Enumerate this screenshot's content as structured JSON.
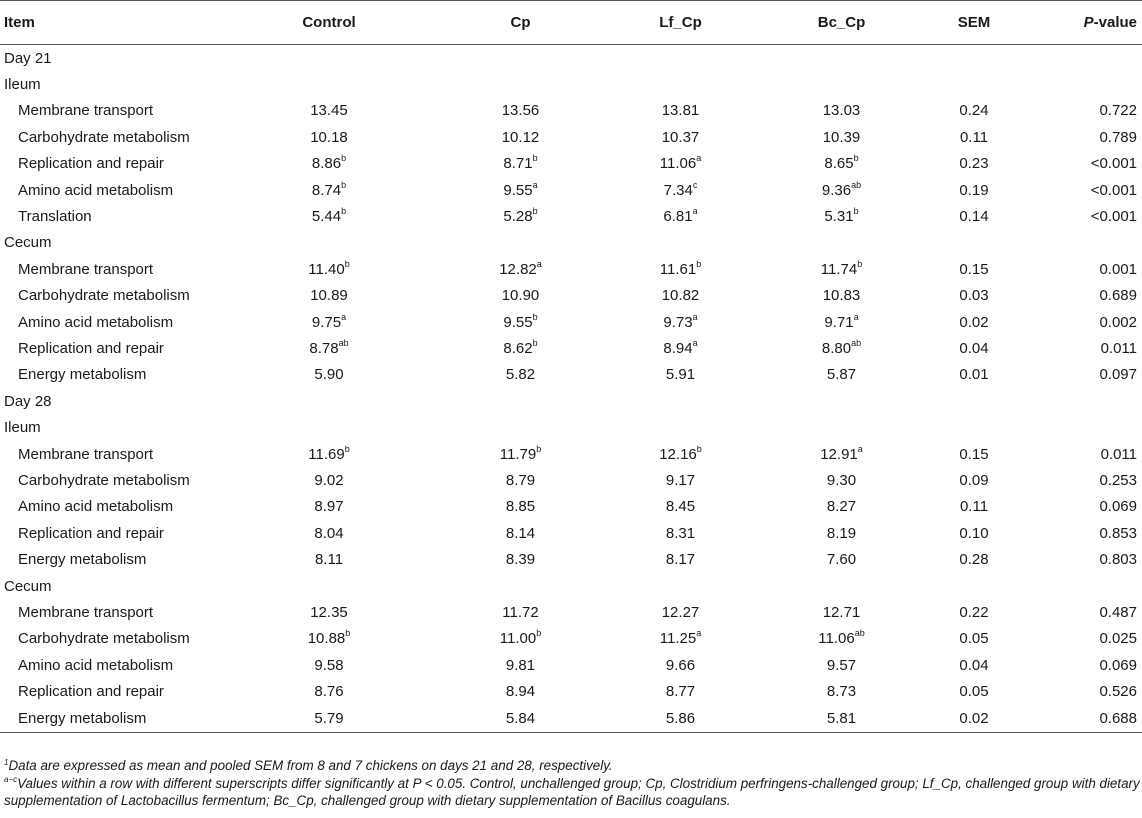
{
  "headers": [
    "Item",
    "Control",
    "Cp",
    "Lf_Cp",
    "Bc_Cp",
    "SEM",
    "P-value"
  ],
  "header_p_italic": "P",
  "header_p_rest": "-value",
  "rows": [
    {
      "kind": "section",
      "label": "Day 21"
    },
    {
      "kind": "section",
      "label": "Ileum"
    },
    {
      "kind": "data",
      "label": "Membrane transport",
      "cells": [
        [
          "13.45",
          ""
        ],
        [
          "13.56",
          ""
        ],
        [
          "13.81",
          ""
        ],
        [
          "13.03",
          ""
        ]
      ],
      "sem": "0.24",
      "p": "0.722"
    },
    {
      "kind": "data",
      "label": "Carbohydrate metabolism",
      "cells": [
        [
          "10.18",
          ""
        ],
        [
          "10.12",
          ""
        ],
        [
          "10.37",
          ""
        ],
        [
          "10.39",
          ""
        ]
      ],
      "sem": "0.11",
      "p": "0.789"
    },
    {
      "kind": "data",
      "label": "Replication and repair",
      "cells": [
        [
          "8.86",
          "b"
        ],
        [
          "8.71",
          "b"
        ],
        [
          "11.06",
          "a"
        ],
        [
          "8.65",
          "b"
        ]
      ],
      "sem": "0.23",
      "p": "<0.001"
    },
    {
      "kind": "data",
      "label": "Amino acid metabolism",
      "cells": [
        [
          "8.74",
          "b"
        ],
        [
          "9.55",
          "a"
        ],
        [
          "7.34",
          "c"
        ],
        [
          "9.36",
          "ab"
        ]
      ],
      "sem": "0.19",
      "p": "<0.001"
    },
    {
      "kind": "data",
      "label": "Translation",
      "cells": [
        [
          "5.44",
          "b"
        ],
        [
          "5.28",
          "b"
        ],
        [
          "6.81",
          "a"
        ],
        [
          "5.31",
          "b"
        ]
      ],
      "sem": "0.14",
      "p": "<0.001"
    },
    {
      "kind": "section",
      "label": "Cecum"
    },
    {
      "kind": "data",
      "label": "Membrane transport",
      "cells": [
        [
          "11.40",
          "b"
        ],
        [
          "12.82",
          "a"
        ],
        [
          "11.61",
          "b"
        ],
        [
          "11.74",
          "b"
        ]
      ],
      "sem": "0.15",
      "p": "0.001"
    },
    {
      "kind": "data",
      "label": "Carbohydrate metabolism",
      "cells": [
        [
          "10.89",
          ""
        ],
        [
          "10.90",
          ""
        ],
        [
          "10.82",
          ""
        ],
        [
          "10.83",
          ""
        ]
      ],
      "sem": "0.03",
      "p": "0.689"
    },
    {
      "kind": "data",
      "label": "Amino acid metabolism",
      "cells": [
        [
          "9.75",
          "a"
        ],
        [
          "9.55",
          "b"
        ],
        [
          "9.73",
          "a"
        ],
        [
          "9.71",
          "a"
        ]
      ],
      "sem": "0.02",
      "p": "0.002"
    },
    {
      "kind": "data",
      "label": "Replication and repair",
      "cells": [
        [
          "8.78",
          "ab"
        ],
        [
          "8.62",
          "b"
        ],
        [
          "8.94",
          "a"
        ],
        [
          "8.80",
          "ab"
        ]
      ],
      "sem": "0.04",
      "p": "0.011"
    },
    {
      "kind": "data",
      "label": "Energy metabolism",
      "cells": [
        [
          "5.90",
          ""
        ],
        [
          "5.82",
          ""
        ],
        [
          "5.91",
          ""
        ],
        [
          "5.87",
          ""
        ]
      ],
      "sem": "0.01",
      "p": "0.097"
    },
    {
      "kind": "section",
      "label": "Day 28"
    },
    {
      "kind": "section",
      "label": "Ileum"
    },
    {
      "kind": "data",
      "label": "Membrane transport",
      "cells": [
        [
          "11.69",
          "b"
        ],
        [
          "11.79",
          "b"
        ],
        [
          "12.16",
          "b"
        ],
        [
          "12.91",
          "a"
        ]
      ],
      "sem": "0.15",
      "p": "0.011"
    },
    {
      "kind": "data",
      "label": "Carbohydrate metabolism",
      "cells": [
        [
          "9.02",
          ""
        ],
        [
          "8.79",
          ""
        ],
        [
          "9.17",
          ""
        ],
        [
          "9.30",
          ""
        ]
      ],
      "sem": "0.09",
      "p": "0.253"
    },
    {
      "kind": "data",
      "label": "Amino acid metabolism",
      "cells": [
        [
          "8.97",
          ""
        ],
        [
          "8.85",
          ""
        ],
        [
          "8.45",
          ""
        ],
        [
          "8.27",
          ""
        ]
      ],
      "sem": "0.11",
      "p": "0.069"
    },
    {
      "kind": "data",
      "label": "Replication and repair",
      "cells": [
        [
          "8.04",
          ""
        ],
        [
          "8.14",
          ""
        ],
        [
          "8.31",
          ""
        ],
        [
          "8.19",
          ""
        ]
      ],
      "sem": "0.10",
      "p": "0.853"
    },
    {
      "kind": "data",
      "label": "Energy metabolism",
      "cells": [
        [
          "8.11",
          ""
        ],
        [
          "8.39",
          ""
        ],
        [
          "8.17",
          ""
        ],
        [
          "7.60",
          ""
        ]
      ],
      "sem": "0.28",
      "p": "0.803"
    },
    {
      "kind": "section",
      "label": "Cecum"
    },
    {
      "kind": "data",
      "label": "Membrane transport",
      "cells": [
        [
          "12.35",
          ""
        ],
        [
          "11.72",
          ""
        ],
        [
          "12.27",
          ""
        ],
        [
          "12.71",
          ""
        ]
      ],
      "sem": "0.22",
      "p": "0.487"
    },
    {
      "kind": "data",
      "label": "Carbohydrate metabolism",
      "cells": [
        [
          "10.88",
          "b"
        ],
        [
          "11.00",
          "b"
        ],
        [
          "11.25",
          "a"
        ],
        [
          "11.06",
          "ab"
        ]
      ],
      "sem": "0.05",
      "p": "0.025"
    },
    {
      "kind": "data",
      "label": "Amino acid metabolism",
      "cells": [
        [
          "9.58",
          ""
        ],
        [
          "9.81",
          ""
        ],
        [
          "9.66",
          ""
        ],
        [
          "9.57",
          ""
        ]
      ],
      "sem": "0.04",
      "p": "0.069"
    },
    {
      "kind": "data",
      "label": "Replication and repair",
      "cells": [
        [
          "8.76",
          ""
        ],
        [
          "8.94",
          ""
        ],
        [
          "8.77",
          ""
        ],
        [
          "8.73",
          ""
        ]
      ],
      "sem": "0.05",
      "p": "0.526"
    },
    {
      "kind": "data",
      "label": "Energy metabolism",
      "cells": [
        [
          "5.79",
          ""
        ],
        [
          "5.84",
          ""
        ],
        [
          "5.86",
          ""
        ],
        [
          "5.81",
          ""
        ]
      ],
      "sem": "0.02",
      "p": "0.688"
    }
  ],
  "footnotes": [
    {
      "mark": "1",
      "text": "Data are expressed as mean and pooled SEM from 8 and 7 chickens on days 21 and 28, respectively."
    },
    {
      "mark": "a−c",
      "text": "Values within a row with different superscripts differ significantly at P < 0.05. Control, unchallenged group; Cp, Clostridium perfringens-challenged group; Lf_Cp, challenged group with dietary supplementation of Lactobacillus fermentum; Bc_Cp, challenged group with dietary supplementation of Bacillus coagulans."
    }
  ]
}
